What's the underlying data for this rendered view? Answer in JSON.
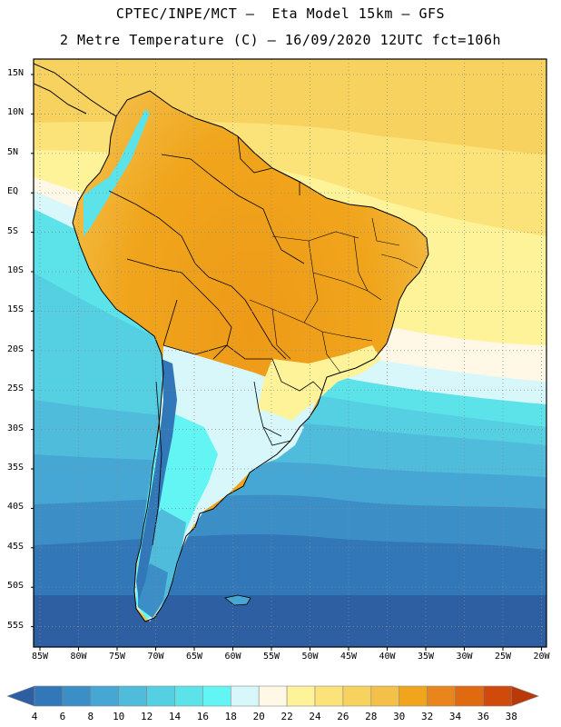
{
  "header": {
    "title_line1": "CPTEC/INPE/MCT –  Eta Model 15km – GFS",
    "title_line2": "2 Metre Temperature (C) – 16/09/2020 12UTC fct=106h"
  },
  "map": {
    "lat_labels": [
      "15N",
      "10N",
      "5N",
      "EQ",
      "5S",
      "10S",
      "15S",
      "20S",
      "25S",
      "30S",
      "35S",
      "40S",
      "45S",
      "50S",
      "55S"
    ],
    "lon_labels": [
      "85W",
      "80W",
      "75W",
      "70W",
      "65W",
      "60W",
      "55W",
      "50W",
      "45W",
      "40W",
      "35W",
      "30W",
      "25W",
      "20W"
    ]
  },
  "colorbar": {
    "labels": [
      "4",
      "6",
      "8",
      "10",
      "12",
      "14",
      "16",
      "18",
      "20",
      "22",
      "24",
      "26",
      "28",
      "30",
      "32",
      "34",
      "36",
      "38"
    ],
    "colors": [
      "#2e5fa3",
      "#3277b8",
      "#3b8fc6",
      "#46a7d4",
      "#4fbcdc",
      "#55d0e2",
      "#5ce3ea",
      "#63f4f4",
      "#d7f7fa",
      "#fff8e6",
      "#fff39a",
      "#fbe37a",
      "#f7d25e",
      "#f3c04a",
      "#f0a51c",
      "#e8861d",
      "#e06a10",
      "#cf4a0b",
      "#b73a08"
    ]
  }
}
